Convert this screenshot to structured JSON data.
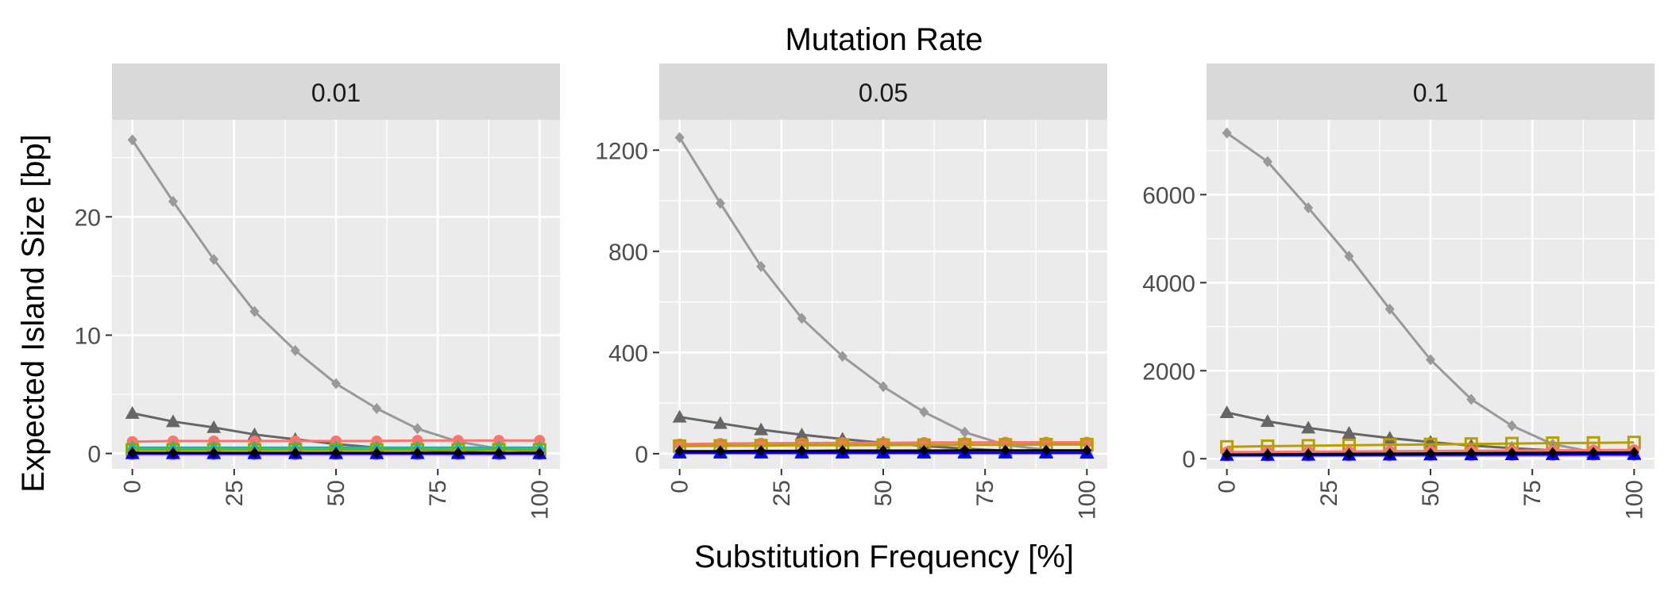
{
  "chart_data": {
    "type": "line",
    "facet_title": "Mutation Rate",
    "xlabel": "Substitution Frequency [%]",
    "ylabel": "Expected Island Size [bp]",
    "x": [
      0,
      10,
      20,
      30,
      40,
      50,
      60,
      70,
      80,
      90,
      100
    ],
    "x_ticks": [
      "0",
      "25",
      "50",
      "75",
      "100"
    ],
    "grid": true,
    "panels": [
      {
        "strip_label": "0.01",
        "xlim": [
          -5,
          105
        ],
        "ylim": [
          -1.3,
          28.2
        ],
        "y_ticks": [
          "0",
          "10",
          "20"
        ],
        "y_tick_values": [
          0,
          10,
          20
        ],
        "series": [
          {
            "color": "#999999",
            "marker": "diamond",
            "values": [
              26.5,
              21.3,
              16.4,
              12.0,
              8.7,
              5.9,
              3.8,
              2.1,
              1.0,
              0.4,
              0.1
            ]
          },
          {
            "color": "#666666",
            "marker": "triangle",
            "values": [
              3.4,
              2.7,
              2.2,
              1.6,
              1.2,
              0.8,
              0.5,
              0.3,
              0.15,
              0.05,
              0.0
            ]
          },
          {
            "color": "#F8766D",
            "marker": "circle",
            "values": [
              1.0,
              1.05,
              1.05,
              1.05,
              1.05,
              1.05,
              1.05,
              1.1,
              1.1,
              1.1,
              1.1
            ]
          },
          {
            "color": "#00BFC4",
            "marker": "triangle",
            "values": [
              0.5,
              0.5,
              0.5,
              0.5,
              0.5,
              0.5,
              0.5,
              0.5,
              0.5,
              0.5,
              0.5
            ]
          },
          {
            "color": "#7CAE00",
            "marker": "square",
            "values": [
              0.3,
              0.3,
              0.3,
              0.3,
              0.3,
              0.3,
              0.3,
              0.3,
              0.3,
              0.3,
              0.3
            ]
          },
          {
            "color": "#C77CFF",
            "marker": "circle",
            "values": [
              -0.1,
              -0.1,
              -0.1,
              -0.1,
              -0.1,
              -0.1,
              -0.1,
              -0.1,
              -0.1,
              -0.1,
              -0.1
            ]
          },
          {
            "color": "#0000FF",
            "marker": "triangle",
            "values": [
              0.0,
              0.0,
              0.0,
              0.0,
              0.0,
              0.0,
              0.0,
              0.0,
              0.0,
              0.0,
              0.0
            ]
          },
          {
            "color": "#000000",
            "marker": "diamond",
            "values": [
              0.05,
              0.05,
              0.05,
              0.05,
              0.05,
              0.05,
              0.05,
              0.05,
              0.05,
              0.05,
              0.05
            ]
          }
        ]
      },
      {
        "strip_label": "0.05",
        "xlim": [
          -5,
          105
        ],
        "ylim": [
          -60,
          1320
        ],
        "y_ticks": [
          "0",
          "400",
          "800",
          "1200"
        ],
        "y_tick_values": [
          0,
          400,
          800,
          1200
        ],
        "series": [
          {
            "color": "#999999",
            "marker": "diamond",
            "values": [
              1250,
              990,
              740,
              535,
              385,
              265,
              165,
              85,
              35,
              15,
              5
            ]
          },
          {
            "color": "#666666",
            "marker": "triangle",
            "values": [
              145,
              120,
              95,
              75,
              58,
              43,
              30,
              20,
              12,
              6,
              2
            ]
          },
          {
            "color": "#F8766D",
            "marker": "circle",
            "values": [
              38,
              40,
              41,
              42,
              43,
              43,
              44,
              44,
              45,
              45,
              45
            ]
          },
          {
            "color": "#B79F00",
            "marker": "square",
            "values": [
              30,
              31,
              32,
              33,
              33,
              34,
              34,
              35,
              35,
              36,
              36
            ]
          },
          {
            "color": "#00BFC4",
            "marker": "triangle",
            "values": [
              8,
              8,
              8,
              8,
              8,
              8,
              8,
              8,
              8,
              8,
              8
            ]
          },
          {
            "color": "#C77CFF",
            "marker": "circle",
            "values": [
              2,
              2,
              2,
              2,
              2,
              2,
              2,
              2,
              2,
              2,
              2
            ]
          },
          {
            "color": "#0000FF",
            "marker": "triangle",
            "values": [
              3,
              3,
              3,
              3,
              3,
              3,
              3,
              3,
              3,
              3,
              3
            ]
          },
          {
            "color": "#000000",
            "marker": "diamond",
            "values": [
              10,
              10,
              11,
              11,
              12,
              12,
              12,
              13,
              13,
              13,
              13
            ]
          }
        ]
      },
      {
        "strip_label": "0.1",
        "xlim": [
          -5,
          105
        ],
        "ylim": [
          -230,
          7700
        ],
        "y_ticks": [
          "0",
          "2000",
          "4000",
          "6000"
        ],
        "y_tick_values": [
          0,
          2000,
          4000,
          6000
        ],
        "series": [
          {
            "color": "#999999",
            "marker": "diamond",
            "values": [
              7400,
              6750,
              5700,
              4600,
              3400,
              2250,
              1350,
              750,
              330,
              150,
              60
            ]
          },
          {
            "color": "#666666",
            "marker": "triangle",
            "values": [
              1050,
              850,
              700,
              580,
              470,
              380,
              300,
              240,
              190,
              150,
              120
            ]
          },
          {
            "color": "#B79F00",
            "marker": "square",
            "values": [
              270,
              285,
              295,
              305,
              315,
              325,
              335,
              345,
              355,
              360,
              370
            ]
          },
          {
            "color": "#F8766D",
            "marker": "circle",
            "values": [
              150,
              155,
              160,
              165,
              170,
              175,
              180,
              185,
              190,
              195,
              200
            ]
          },
          {
            "color": "#C77CFF",
            "marker": "circle",
            "values": [
              60,
              62,
              64,
              66,
              68,
              70,
              72,
              74,
              76,
              78,
              80
            ]
          },
          {
            "color": "#0000FF",
            "marker": "triangle",
            "values": [
              80,
              82,
              84,
              86,
              88,
              90,
              92,
              94,
              96,
              98,
              100
            ]
          },
          {
            "color": "#000000",
            "marker": "diamond",
            "values": [
              95,
              100,
              105,
              110,
              115,
              120,
              125,
              130,
              135,
              140,
              145
            ]
          }
        ]
      }
    ]
  }
}
